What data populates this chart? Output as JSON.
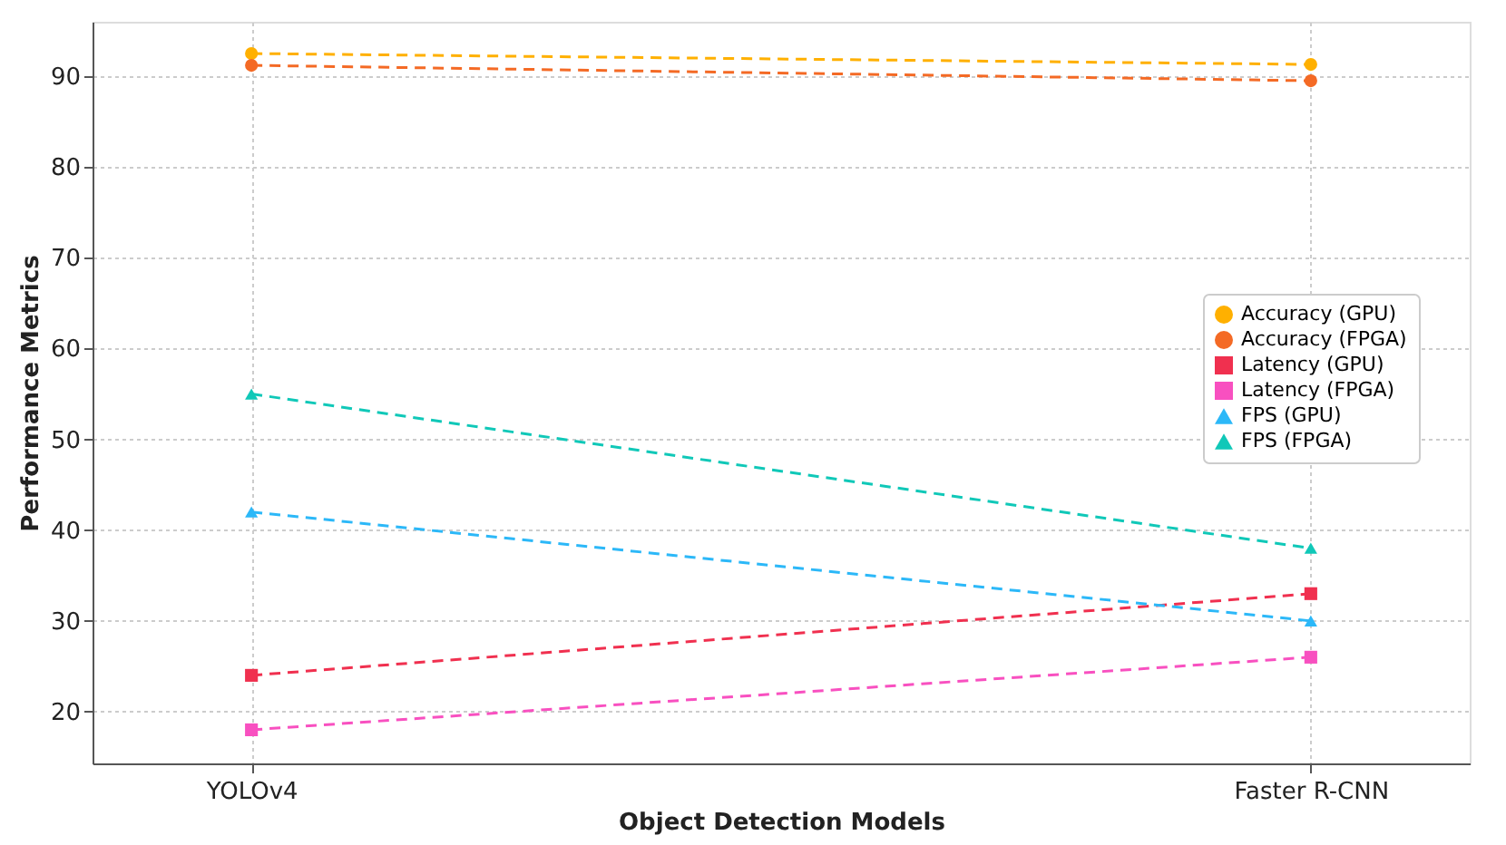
{
  "chart_data": {
    "type": "line",
    "xlabel": "Object Detection Models",
    "ylabel": "Performance Metrics",
    "categories": [
      "YOLOv4",
      "Faster R-CNN"
    ],
    "series": [
      {
        "name": "Accuracy (GPU)",
        "color": "#ffb000",
        "marker": "circle",
        "values": [
          92.5,
          91.3
        ]
      },
      {
        "name": "Accuracy (FPGA)",
        "color": "#f46a25",
        "marker": "circle",
        "values": [
          91.2,
          89.5
        ]
      },
      {
        "name": "Latency (GPU)",
        "color": "#f0304f",
        "marker": "square",
        "values": [
          24,
          33
        ]
      },
      {
        "name": "Latency (FPGA)",
        "color": "#f850c0",
        "marker": "square",
        "values": [
          18,
          26
        ]
      },
      {
        "name": "FPS (GPU)",
        "color": "#2cb8f8",
        "marker": "triangle",
        "values": [
          42,
          30
        ]
      },
      {
        "name": "FPS (FPGA)",
        "color": "#10c8b8",
        "marker": "triangle",
        "values": [
          55,
          38
        ]
      }
    ],
    "ylim": [
      14.3,
      96
    ],
    "yticks": [
      20,
      30,
      40,
      50,
      60,
      70,
      80,
      90
    ],
    "grid": true,
    "legend": "right",
    "line_style": "dashed"
  }
}
